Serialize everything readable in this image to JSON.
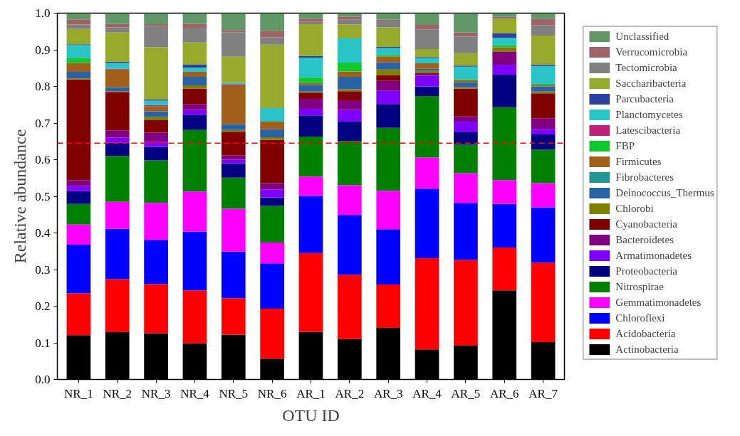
{
  "chart_data": {
    "type": "bar",
    "stacked": true,
    "xlabel": "OTU ID",
    "ylabel": "Relative abundance",
    "categories": [
      "NR_1",
      "NR_2",
      "NR_3",
      "NR_4",
      "NR_5",
      "NR_6",
      "AR_1",
      "AR_2",
      "AR_3",
      "AR_4",
      "AR_5",
      "AR_6",
      "AR_7"
    ],
    "ylim": [
      0,
      1
    ],
    "yticks": [
      {
        "value": 0,
        "label": "0.0"
      },
      {
        "value": 0.1,
        "label": "0.1"
      },
      {
        "value": 0.2,
        "label": "0.2"
      },
      {
        "value": 0.3,
        "label": "0.3"
      },
      {
        "value": 0.4,
        "label": "0.4"
      },
      {
        "value": 0.5,
        "label": "0.5"
      },
      {
        "value": 0.6,
        "label": "0.6"
      },
      {
        "value": 0.7,
        "label": "0.7"
      },
      {
        "value": 0.8,
        "label": "0.8"
      },
      {
        "value": 0.9,
        "label": "0.9"
      },
      {
        "value": 1,
        "label": "1.0"
      }
    ],
    "grid": false,
    "legend": "right",
    "ref_lines": [
      {
        "axis": "y",
        "value": 0.645,
        "color": "#ff0000",
        "line_style": "dashed"
      }
    ],
    "series": [
      {
        "name": "Actinobacteria",
        "color": "#000000",
        "values": [
          0.121,
          0.129,
          0.126,
          0.099,
          0.122,
          0.057,
          0.13,
          0.11,
          0.141,
          0.082,
          0.092,
          0.243,
          0.102
        ]
      },
      {
        "name": "Acidobacteria",
        "color": "#ff0000",
        "values": [
          0.114,
          0.145,
          0.134,
          0.144,
          0.1,
          0.136,
          0.215,
          0.176,
          0.118,
          0.249,
          0.234,
          0.117,
          0.217
        ]
      },
      {
        "name": "Chloroflexi",
        "color": "#0000ff",
        "values": [
          0.133,
          0.137,
          0.121,
          0.161,
          0.127,
          0.124,
          0.156,
          0.163,
          0.151,
          0.19,
          0.156,
          0.119,
          0.151
        ]
      },
      {
        "name": "Gemmatimonadetes",
        "color": "#ff00ff",
        "values": [
          0.055,
          0.074,
          0.101,
          0.109,
          0.117,
          0.057,
          0.053,
          0.081,
          0.105,
          0.085,
          0.081,
          0.065,
          0.066
        ]
      },
      {
        "name": "Nitrospirae",
        "color": "#008000",
        "values": [
          0.056,
          0.125,
          0.116,
          0.168,
          0.085,
          0.1,
          0.109,
          0.121,
          0.172,
          0.168,
          0.078,
          0.199,
          0.091
        ]
      },
      {
        "name": "Proteobacteria",
        "color": "#000080",
        "values": [
          0.035,
          0.036,
          0.037,
          0.042,
          0.039,
          0.023,
          0.058,
          0.053,
          0.065,
          0.026,
          0.035,
          0.089,
          0.042
        ]
      },
      {
        "name": "Armatimonadetes",
        "color": "#8000ff",
        "values": [
          0.014,
          0.014,
          0.014,
          0.013,
          0.01,
          0.022,
          0.018,
          0.032,
          0.036,
          0.029,
          0.028,
          0.027,
          0.015
        ]
      },
      {
        "name": "Bacteroidetes",
        "color": "#800080",
        "values": [
          0.016,
          0.02,
          0.025,
          0.016,
          0.011,
          0.017,
          0.027,
          0.026,
          0.027,
          0.007,
          0.014,
          0.035,
          0.028
        ]
      },
      {
        "name": "Cyanobacteria",
        "color": "#800000",
        "values": [
          0.275,
          0.105,
          0.034,
          0.042,
          0.065,
          0.118,
          0.017,
          0.025,
          0.016,
          0,
          0.076,
          0,
          0.069
        ]
      },
      {
        "name": "Chlorobi",
        "color": "#808000",
        "values": [
          0.003,
          0.002,
          0.009,
          0.009,
          0.005,
          0.007,
          0.003,
          0.005,
          0.015,
          0.007,
          0.004,
          0.008,
          0.005
        ]
      },
      {
        "name": "Deinococcus_Thermus",
        "color": "#2a62a6",
        "values": [
          0.018,
          0.011,
          0.015,
          0.023,
          0.016,
          0.022,
          0.018,
          0.034,
          0.02,
          0.005,
          0.013,
          0,
          0.014
        ]
      },
      {
        "name": "Fibrobacteres",
        "color": "#1e9696",
        "values": [
          0,
          0,
          0,
          0,
          0,
          0,
          0,
          0,
          0,
          0,
          0,
          0,
          0
        ]
      },
      {
        "name": "Firmicutes",
        "color": "#a0601a",
        "values": [
          0.024,
          0.048,
          0.014,
          0.014,
          0.106,
          0.021,
          0.005,
          0.015,
          0.016,
          0.015,
          0.006,
          0.005,
          0.004
        ]
      },
      {
        "name": "FBP",
        "color": "#10c830",
        "values": [
          0.014,
          0,
          0,
          0,
          0,
          0,
          0.016,
          0.024,
          0.004,
          0,
          0.003,
          0.006,
          0.003
        ]
      },
      {
        "name": "Latescibacteria",
        "color": "#c0207a",
        "values": [
          0,
          0.002,
          0.003,
          0,
          0.003,
          0,
          0,
          0,
          0,
          0,
          0,
          0,
          0
        ]
      },
      {
        "name": "Planctomycetes",
        "color": "#28c4c8",
        "values": [
          0.035,
          0.016,
          0.012,
          0.011,
          0.004,
          0.037,
          0.053,
          0.066,
          0.019,
          0.014,
          0.034,
          0.02,
          0.049
        ]
      },
      {
        "name": "Parcubacteria",
        "color": "#3040a0",
        "values": [
          0.002,
          0.003,
          0.003,
          0.008,
          0,
          0,
          0.005,
          0,
          0.003,
          0.003,
          0.003,
          0.012,
          0.003
        ]
      },
      {
        "name": "Saccharibacteria",
        "color": "#98aa2c",
        "values": [
          0.042,
          0.08,
          0.143,
          0.061,
          0.071,
          0.173,
          0.087,
          0.038,
          0.053,
          0.022,
          0.034,
          0.04,
          0.08
        ]
      },
      {
        "name": "Tectomicrobia",
        "color": "#808080",
        "values": [
          0.012,
          0.014,
          0.058,
          0.04,
          0.067,
          0.02,
          0.006,
          0.013,
          0.017,
          0.054,
          0.045,
          0,
          0.028
        ]
      },
      {
        "name": "Verrucomicrobia",
        "color": "#a06468",
        "values": [
          0.014,
          0.01,
          0.005,
          0.011,
          0.006,
          0.018,
          0.009,
          0.008,
          0.004,
          0.012,
          0.011,
          0.005,
          0.018
        ]
      },
      {
        "name": "Unclassified",
        "color": "#609868",
        "values": [
          0.017,
          0.029,
          0.03,
          0.029,
          0.046,
          0.048,
          0.015,
          0.01,
          0.018,
          0.032,
          0.053,
          0.01,
          0.015
        ]
      }
    ]
  }
}
